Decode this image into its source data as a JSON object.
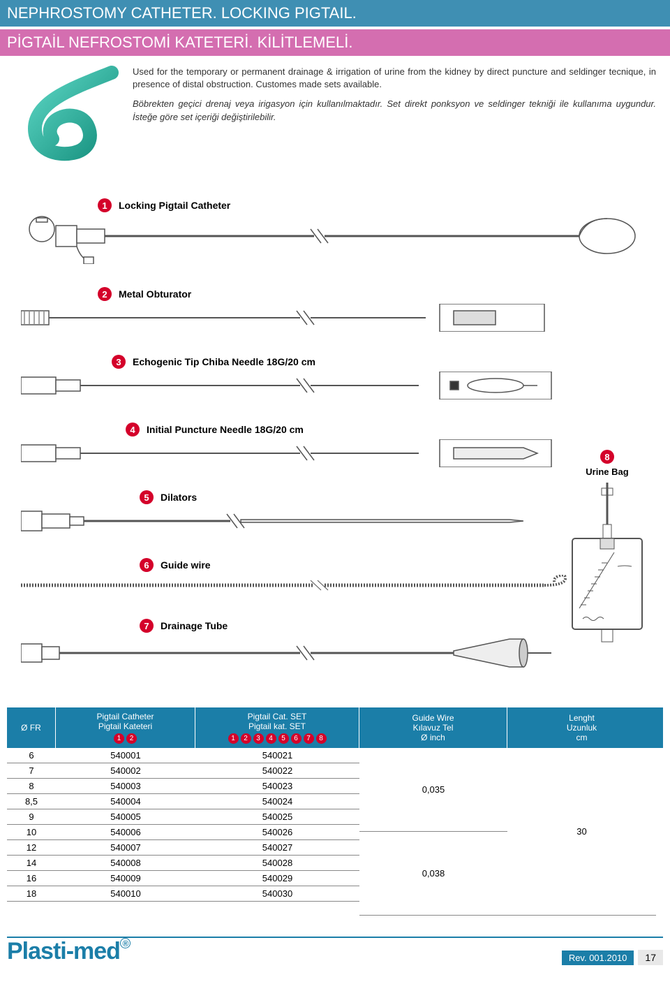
{
  "colors": {
    "blue": "#3f8fb3",
    "pink": "#d46eb0",
    "tableHead": "#1b7ea8",
    "red": "#d4002a",
    "catheter": "#24b5a3"
  },
  "header": {
    "line1": "NEPHROSTOMY CATHETER. LOCKING PIGTAIL.",
    "line2": "PİGTAİL NEFROSTOMİ KATETERİ. KİLİTLEMELİ."
  },
  "intro": {
    "p1": "Used for the temporary or permanent drainage & irrigation of urine from the kidney by direct puncture and seldinger tecnique, in presence of distal obstruction. Customes made sets available.",
    "p2": "Böbrekten geçici drenaj veya irigasyon için kullanılmaktadır. Set direkt ponksyon ve seldinger tekniği ile kullanıma uygundur. İsteğe göre set içeriği değiştirilebilir."
  },
  "components": [
    {
      "n": "1",
      "label": "Locking Pigtail Catheter",
      "indent": 110
    },
    {
      "n": "2",
      "label": "Metal Obturator",
      "indent": 110
    },
    {
      "n": "3",
      "label": "Echogenic Tip Chiba Needle 18G/20 cm",
      "indent": 130
    },
    {
      "n": "4",
      "label": "Initial Puncture Needle 18G/20 cm",
      "indent": 150
    },
    {
      "n": "5",
      "label": "Dilators",
      "indent": 170
    },
    {
      "n": "6",
      "label": "Guide wire",
      "indent": 170
    },
    {
      "n": "7",
      "label": "Drainage Tube",
      "indent": 170
    }
  ],
  "urineBag": {
    "n": "8",
    "label": "Urine Bag"
  },
  "table": {
    "headers": {
      "fr": "Ø FR",
      "pc_l1": "Pigtail Catheter",
      "pc_l2": "Pigtail  Kateteri",
      "set_l1": "Pigtail Cat. SET",
      "set_l2": "Pigtail kat. SET",
      "gw_l1": "Guide Wire",
      "gw_l2": "Kılavuz Tel",
      "gw_l3": "Ø  inch",
      "len_l1": "Lenght",
      "len_l2": "Uzunluk",
      "len_l3": "cm"
    },
    "pcNums": [
      "1",
      "2"
    ],
    "setNums": [
      "1",
      "2",
      "3",
      "4",
      "5",
      "6",
      "7",
      "8"
    ],
    "rows": [
      {
        "fr": "6",
        "pc": "540001",
        "set": "540021"
      },
      {
        "fr": "7",
        "pc": "540002",
        "set": "540022"
      },
      {
        "fr": "8",
        "pc": "540003",
        "set": "540023"
      },
      {
        "fr": "8,5",
        "pc": "540004",
        "set": "540024"
      },
      {
        "fr": "9",
        "pc": "540005",
        "set": "540025"
      },
      {
        "fr": "10",
        "pc": "540006",
        "set": "540026"
      },
      {
        "fr": "12",
        "pc": "540007",
        "set": "540027"
      },
      {
        "fr": "14",
        "pc": "540008",
        "set": "540028"
      },
      {
        "fr": "16",
        "pc": "540009",
        "set": "540029"
      },
      {
        "fr": "18",
        "pc": "540010",
        "set": "540030"
      }
    ],
    "guideWire": [
      {
        "val": "0,035",
        "span": 5
      },
      {
        "val": "0,038",
        "span": 5
      }
    ],
    "length": {
      "val": "30",
      "span": 10
    }
  },
  "footer": {
    "logo": "Plasti-med",
    "rev": "Rev. 001.2010",
    "page": "17"
  }
}
